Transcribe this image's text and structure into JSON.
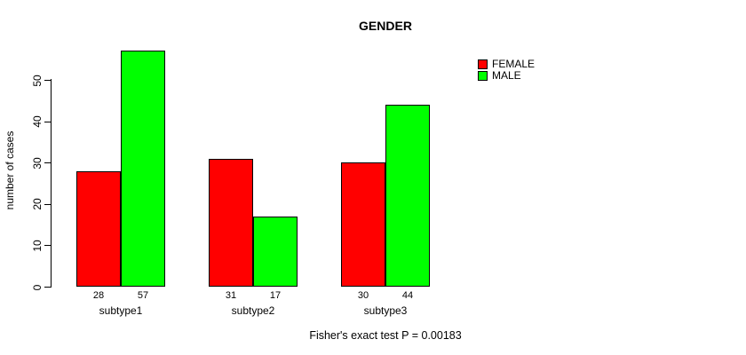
{
  "chart_data": {
    "type": "bar",
    "title": "GENDER",
    "ylabel": "number of cases",
    "xlabel": "",
    "categories": [
      "subtype1",
      "subtype2",
      "subtype3"
    ],
    "series": [
      {
        "name": "FEMALE",
        "color": "#ff0000",
        "values": [
          28,
          31,
          30
        ]
      },
      {
        "name": "MALE",
        "color": "#00ff00",
        "values": [
          57,
          17,
          44
        ]
      }
    ],
    "value_labels": [
      [
        28,
        57
      ],
      [
        31,
        17
      ],
      [
        30,
        44
      ]
    ],
    "yticks": [
      0,
      10,
      20,
      30,
      40,
      50
    ],
    "ylim": [
      0,
      50
    ],
    "grid": false,
    "legend_position": "top-right",
    "annotation": "Fisher's exact test P = 0.00183"
  }
}
